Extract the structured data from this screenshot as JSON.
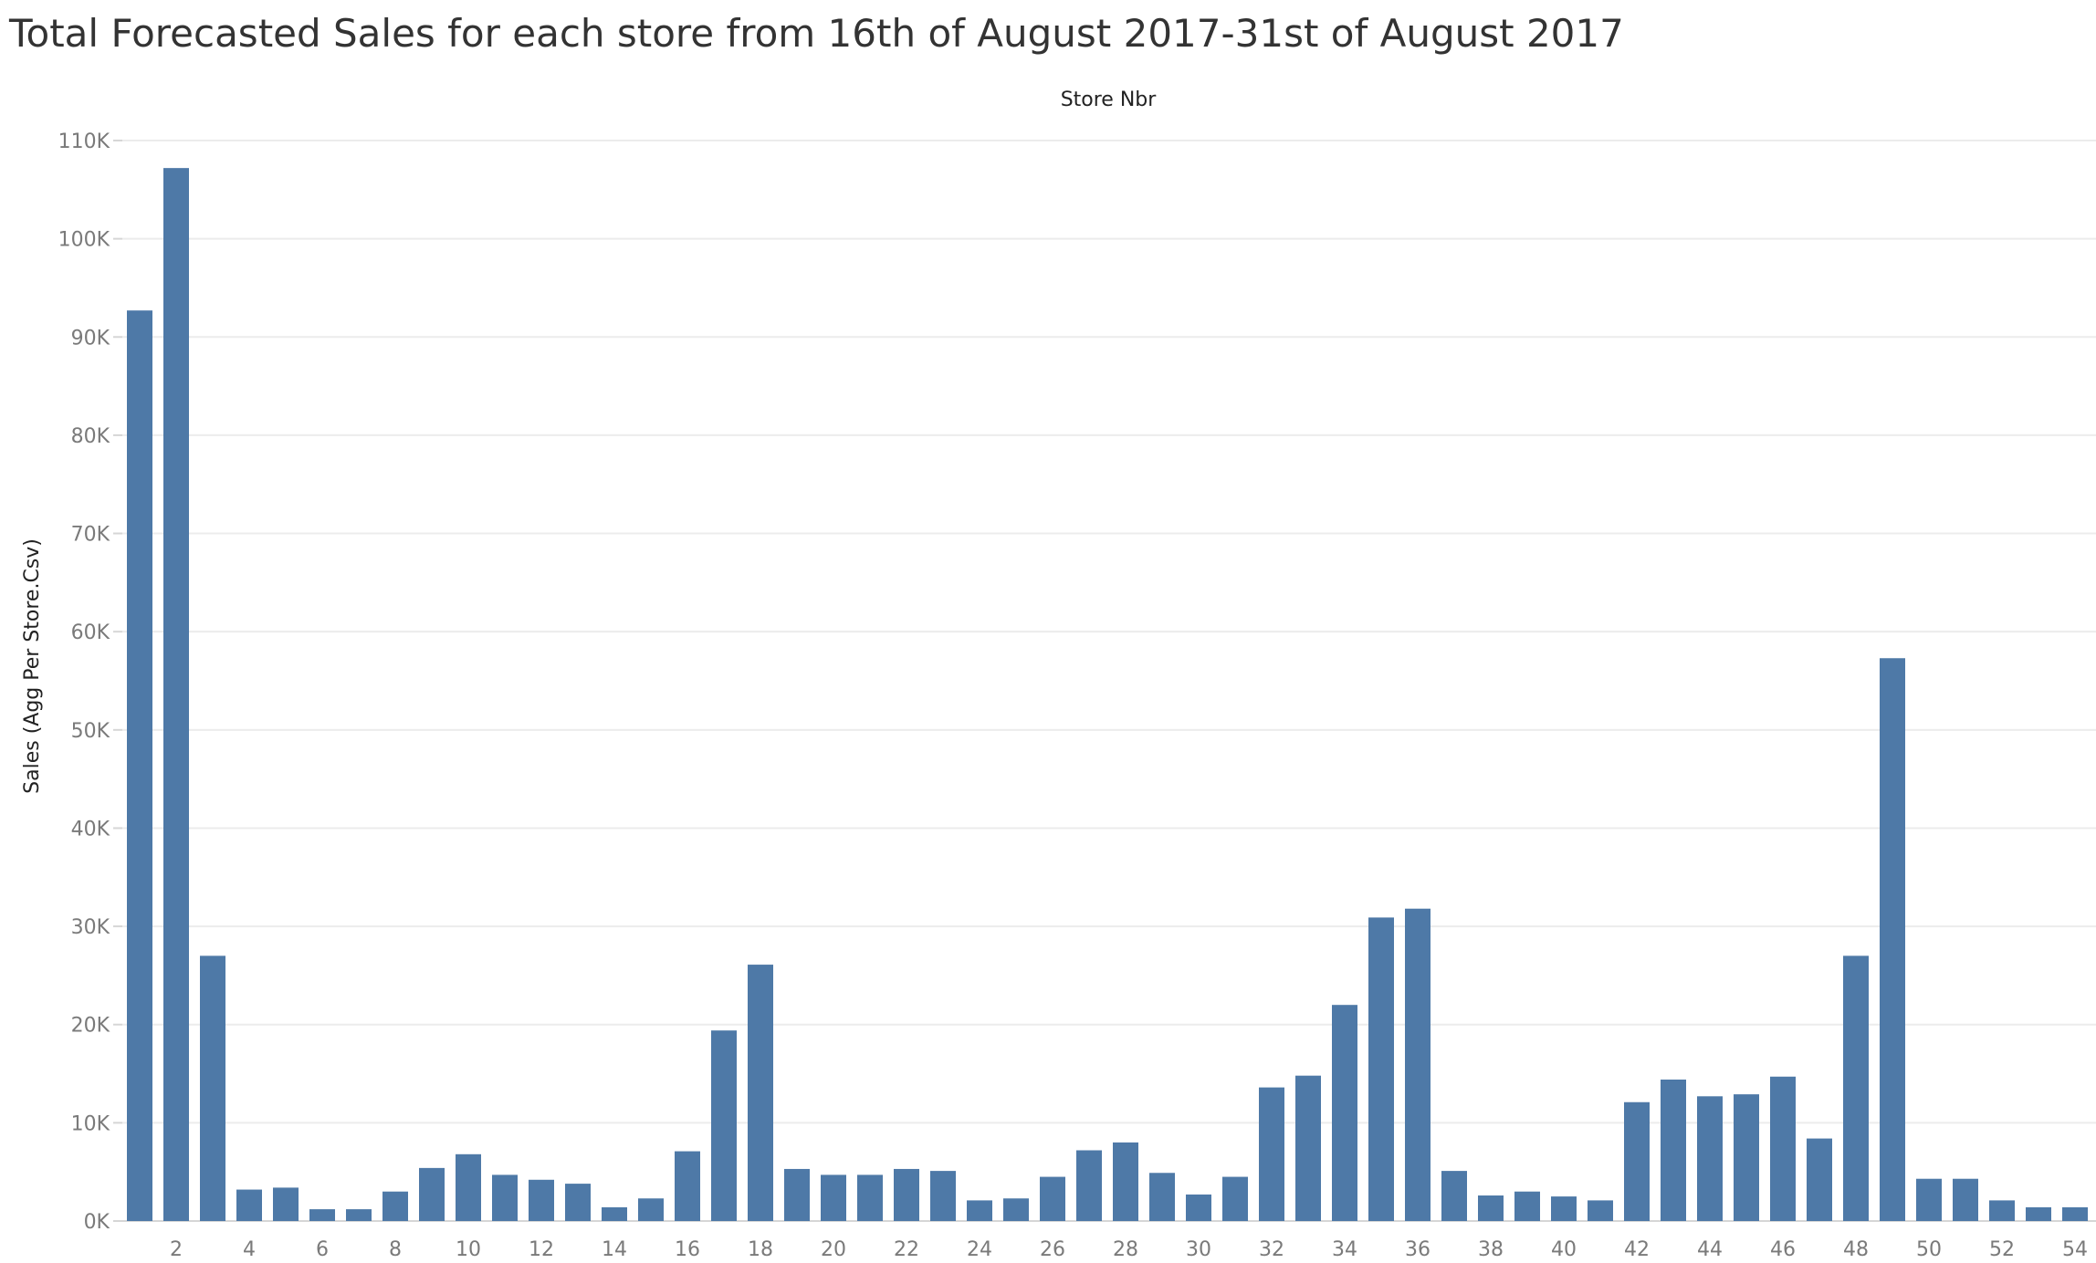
{
  "chart_data": {
    "type": "bar",
    "title": "Total Forecasted Sales for each store from 16th of August 2017-31st of August 2017",
    "xlabel": "Store Nbr",
    "ylabel": "Sales (Agg Per Store.Csv)",
    "ylim": [
      0,
      110000
    ],
    "grid": true,
    "bar_color": "#4e79a7",
    "y_ticks": [
      {
        "value": 0,
        "label": "0K"
      },
      {
        "value": 10000,
        "label": "10K"
      },
      {
        "value": 20000,
        "label": "20K"
      },
      {
        "value": 30000,
        "label": "30K"
      },
      {
        "value": 40000,
        "label": "40K"
      },
      {
        "value": 50000,
        "label": "50K"
      },
      {
        "value": 60000,
        "label": "60K"
      },
      {
        "value": 70000,
        "label": "70K"
      },
      {
        "value": 80000,
        "label": "80K"
      },
      {
        "value": 90000,
        "label": "90K"
      },
      {
        "value": 100000,
        "label": "100K"
      },
      {
        "value": 110000,
        "label": "110K"
      }
    ],
    "x_tick_labels": [
      "2",
      "4",
      "6",
      "8",
      "10",
      "12",
      "14",
      "16",
      "18",
      "20",
      "22",
      "24",
      "26",
      "28",
      "30",
      "32",
      "34",
      "36",
      "38",
      "40",
      "42",
      "44",
      "46",
      "48",
      "50",
      "52",
      "54"
    ],
    "categories": [
      1,
      2,
      3,
      4,
      5,
      6,
      7,
      8,
      9,
      10,
      11,
      12,
      13,
      14,
      15,
      16,
      17,
      18,
      19,
      20,
      21,
      22,
      23,
      24,
      25,
      26,
      27,
      28,
      29,
      30,
      31,
      32,
      33,
      34,
      35,
      36,
      37,
      38,
      39,
      40,
      41,
      42,
      43,
      44,
      45,
      46,
      47,
      48,
      49,
      50,
      51,
      52,
      53,
      54
    ],
    "values": [
      92700,
      107200,
      27000,
      3200,
      3400,
      1200,
      1200,
      3000,
      5400,
      6800,
      4700,
      4200,
      3800,
      1400,
      2300,
      7100,
      19400,
      26100,
      5300,
      4700,
      4700,
      5300,
      5100,
      2100,
      2300,
      4500,
      7200,
      8000,
      4900,
      2700,
      4500,
      13600,
      14800,
      22000,
      30900,
      31800,
      5100,
      2600,
      3000,
      2500,
      2100,
      12100,
      14400,
      12700,
      12900,
      14700,
      8400,
      27000,
      57300,
      4300,
      4300,
      2100,
      1400,
      1400
    ]
  }
}
